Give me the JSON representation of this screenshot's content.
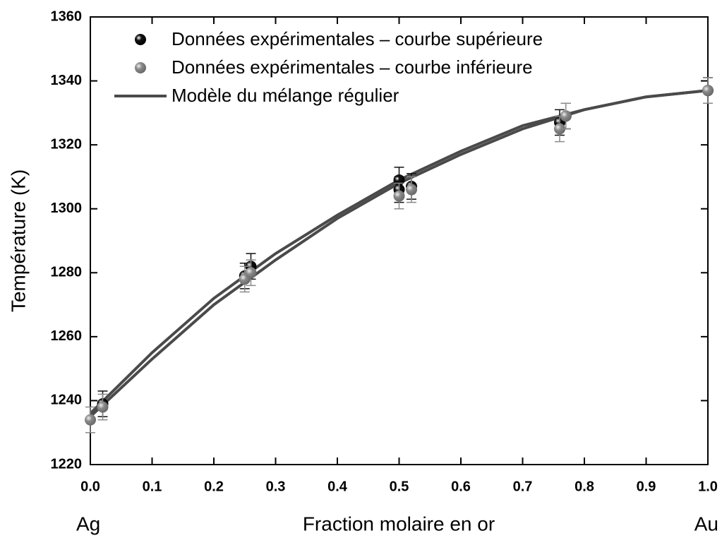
{
  "chart_data": {
    "type": "scatter",
    "x_label": "Fraction molaire en or",
    "y_label": "Température (K)",
    "annotations": [
      "Ag",
      "Au"
    ],
    "xlim": [
      0,
      1
    ],
    "ylim": [
      1220,
      1360
    ],
    "xticks": [
      {
        "value": 0,
        "label": "0.0"
      },
      0.1,
      0.2,
      0.3,
      0.4,
      0.5,
      0.6,
      0.7,
      0.8,
      0.9,
      {
        "value": 1,
        "label": "1.0"
      }
    ],
    "yticks": [
      1220,
      1240,
      1260,
      1280,
      1300,
      1320,
      1340,
      1360
    ],
    "series": [
      {
        "name": "Données expérimentales – courbe supérieure",
        "color": "#111111",
        "x": [
          0.02,
          0.25,
          0.26,
          0.5,
          0.5,
          0.52,
          0.76,
          0.77,
          1.0
        ],
        "values": [
          1239,
          1279,
          1282,
          1309,
          1306,
          1307,
          1327,
          1329,
          1337
        ],
        "errors": [
          4,
          4,
          4,
          4,
          4,
          4,
          4,
          4,
          4
        ]
      },
      {
        "name": "Données expérimentales – courbe inférieure",
        "color": "#8a8a8a",
        "x": [
          0.0,
          0.02,
          0.25,
          0.26,
          0.5,
          0.52,
          0.76,
          0.77,
          1.0
        ],
        "values": [
          1234,
          1238,
          1278,
          1280,
          1304,
          1306,
          1325,
          1329,
          1337
        ],
        "errors": [
          4,
          4,
          4,
          4,
          4,
          4,
          4,
          4,
          4
        ]
      }
    ],
    "lines": [
      {
        "name": "Modèle du mélange régulier",
        "color": "#4a4a4a",
        "x": [
          0,
          0.1,
          0.2,
          0.3,
          0.4,
          0.5,
          0.6,
          0.7,
          0.8,
          0.9,
          1.0
        ],
        "values": [
          1236,
          1255,
          1272,
          1286,
          1298,
          1309,
          1318,
          1326,
          1331,
          1335,
          1337
        ]
      },
      {
        "color": "#4a4a4a",
        "x": [
          0,
          0.1,
          0.2,
          0.3,
          0.4,
          0.5,
          0.6,
          0.7,
          0.8,
          0.9,
          1.0
        ],
        "values": [
          1235,
          1253,
          1270,
          1284,
          1297,
          1308,
          1317,
          1325,
          1331,
          1335,
          1337
        ]
      }
    ]
  }
}
